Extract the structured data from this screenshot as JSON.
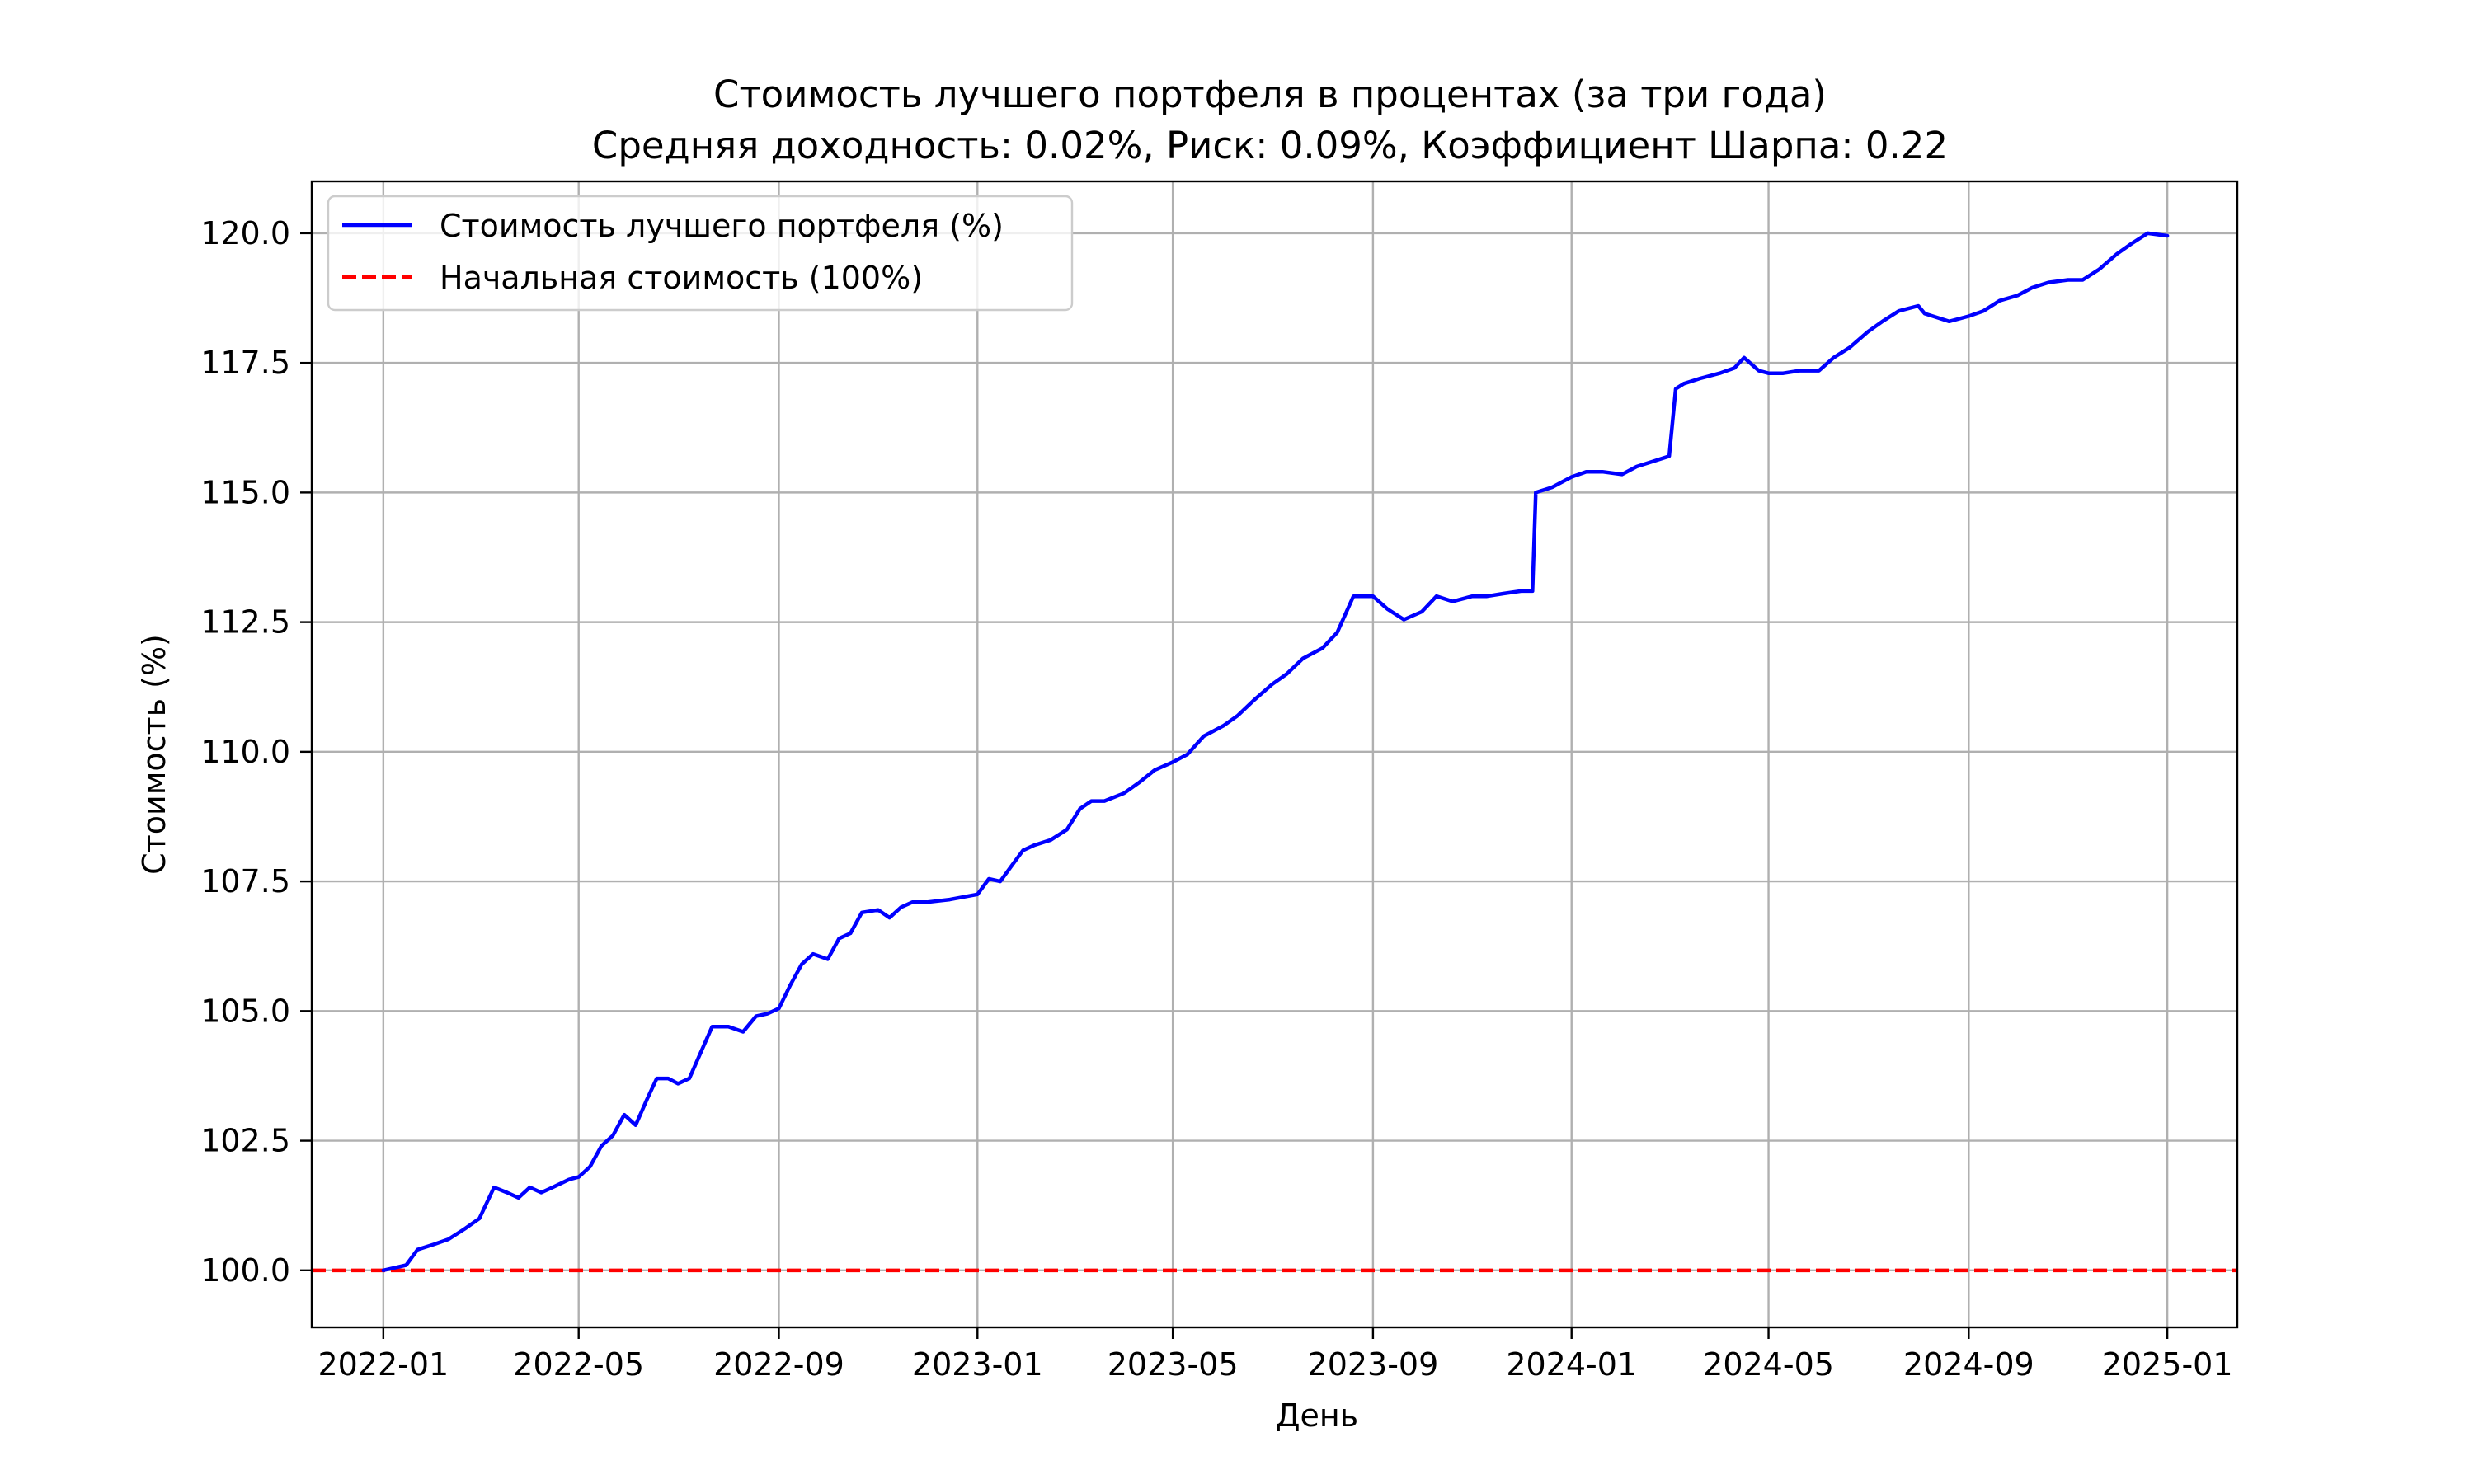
{
  "chart_data": {
    "type": "line",
    "title": "Стоимость лучшего портфеля в процентах (за три года)",
    "subtitle": "Средняя доходность: 0.02%, Риск: 0.09%, Коэффициент Шарпа: 0.22",
    "xlabel": "День",
    "ylabel": "Стоимость (%)",
    "x_type": "date",
    "xlim": [
      "2021-11-18",
      "2025-02-13"
    ],
    "ylim": [
      98.9,
      121.0
    ],
    "x_ticks": [
      "2022-01",
      "2022-05",
      "2022-09",
      "2023-01",
      "2023-05",
      "2023-09",
      "2024-01",
      "2024-05",
      "2024-09",
      "2025-01"
    ],
    "y_ticks": [
      100.0,
      102.5,
      105.0,
      107.5,
      110.0,
      112.5,
      115.0,
      117.5,
      120.0
    ],
    "grid": true,
    "legend": "top-left",
    "series": [
      {
        "name": "Стоимость лучшего портфеля (%)",
        "color": "#0000ff",
        "style": "solid",
        "x": [
          "2022-01-01",
          "2022-01-08",
          "2022-01-15",
          "2022-01-22",
          "2022-02-01",
          "2022-02-10",
          "2022-02-20",
          "2022-03-01",
          "2022-03-10",
          "2022-03-18",
          "2022-03-25",
          "2022-04-01",
          "2022-04-08",
          "2022-04-15",
          "2022-04-25",
          "2022-05-01",
          "2022-05-08",
          "2022-05-15",
          "2022-05-22",
          "2022-05-29",
          "2022-06-05",
          "2022-06-12",
          "2022-06-18",
          "2022-06-25",
          "2022-07-01",
          "2022-07-08",
          "2022-07-15",
          "2022-07-22",
          "2022-08-01",
          "2022-08-10",
          "2022-08-18",
          "2022-08-25",
          "2022-09-01",
          "2022-09-08",
          "2022-09-15",
          "2022-09-22",
          "2022-10-01",
          "2022-10-08",
          "2022-10-15",
          "2022-10-22",
          "2022-11-01",
          "2022-11-08",
          "2022-11-15",
          "2022-11-22",
          "2022-12-01",
          "2022-12-15",
          "2023-01-01",
          "2023-01-08",
          "2023-01-15",
          "2023-01-22",
          "2023-01-29",
          "2023-02-05",
          "2023-02-15",
          "2023-02-25",
          "2023-03-05",
          "2023-03-12",
          "2023-03-20",
          "2023-04-01",
          "2023-04-10",
          "2023-04-20",
          "2023-05-01",
          "2023-05-10",
          "2023-05-20",
          "2023-06-01",
          "2023-06-10",
          "2023-06-20",
          "2023-07-01",
          "2023-07-10",
          "2023-07-20",
          "2023-08-01",
          "2023-08-10",
          "2023-08-20",
          "2023-08-25",
          "2023-09-01",
          "2023-09-10",
          "2023-09-20",
          "2023-10-01",
          "2023-10-10",
          "2023-10-20",
          "2023-11-01",
          "2023-11-10",
          "2023-11-20",
          "2023-12-01",
          "2023-12-08",
          "2023-12-10",
          "2023-12-20",
          "2024-01-01",
          "2024-01-10",
          "2024-01-20",
          "2024-02-01",
          "2024-02-10",
          "2024-02-20",
          "2024-03-01",
          "2024-03-05",
          "2024-03-10",
          "2024-03-20",
          "2024-04-01",
          "2024-04-10",
          "2024-04-16",
          "2024-04-25",
          "2024-05-01",
          "2024-05-10",
          "2024-05-20",
          "2024-06-01",
          "2024-06-10",
          "2024-06-20",
          "2024-07-01",
          "2024-07-10",
          "2024-07-20",
          "2024-08-01",
          "2024-08-05",
          "2024-08-10",
          "2024-08-20",
          "2024-09-01",
          "2024-09-10",
          "2024-09-20",
          "2024-10-01",
          "2024-10-10",
          "2024-10-20",
          "2024-11-01",
          "2024-11-10",
          "2024-11-20",
          "2024-12-01",
          "2024-12-10",
          "2024-12-20",
          "2025-01-01"
        ],
        "values": [
          100.0,
          100.05,
          100.1,
          100.4,
          100.5,
          100.6,
          100.8,
          101.0,
          101.6,
          101.5,
          101.4,
          101.6,
          101.5,
          101.6,
          101.75,
          101.8,
          102.0,
          102.4,
          102.6,
          103.0,
          102.8,
          103.3,
          103.7,
          103.7,
          103.6,
          103.7,
          104.2,
          104.7,
          104.7,
          104.6,
          104.9,
          104.95,
          105.05,
          105.5,
          105.9,
          106.1,
          106.0,
          106.4,
          106.5,
          106.9,
          106.95,
          106.8,
          107.0,
          107.1,
          107.1,
          107.15,
          107.25,
          107.55,
          107.5,
          107.8,
          108.1,
          108.2,
          108.3,
          108.5,
          108.9,
          109.05,
          109.05,
          109.2,
          109.4,
          109.65,
          109.8,
          109.95,
          110.3,
          110.5,
          110.7,
          111.0,
          111.3,
          111.5,
          111.8,
          112.0,
          112.3,
          113.0,
          113.0,
          113.0,
          112.75,
          112.55,
          112.7,
          113.0,
          112.9,
          113.0,
          113.0,
          113.05,
          113.1,
          113.1,
          115.0,
          115.1,
          115.3,
          115.4,
          115.4,
          115.35,
          115.5,
          115.6,
          115.7,
          117.0,
          117.1,
          117.2,
          117.3,
          117.4,
          117.6,
          117.35,
          117.3,
          117.3,
          117.35,
          117.35,
          117.6,
          117.8,
          118.1,
          118.3,
          118.5,
          118.6,
          118.45,
          118.4,
          118.3,
          118.4,
          118.5,
          118.7,
          118.8,
          118.95,
          119.05,
          119.1,
          119.1,
          119.3,
          119.6,
          119.8,
          120.0,
          119.95
        ]
      },
      {
        "name": "Начальная стоимость (100%)",
        "color": "#ff0000",
        "style": "dashed",
        "value": 100.0
      }
    ]
  }
}
